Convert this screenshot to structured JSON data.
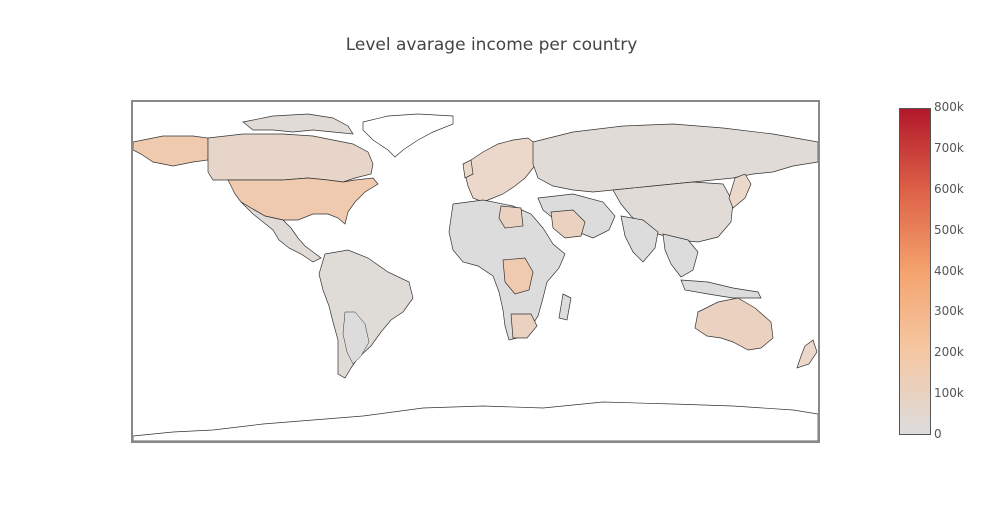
{
  "title": "Level avarage income per country",
  "colorscale": {
    "min": 0,
    "max": 800000,
    "stops": [
      "#dcdcdc",
      "#f5c8a4",
      "#f4a36d",
      "#dd6147",
      "#b2182b"
    ],
    "ticks": [
      "800k",
      "700k",
      "600k",
      "500k",
      "400k",
      "300k",
      "200k",
      "100k",
      "0"
    ]
  },
  "colors": {
    "land_low": "#e0dbd6",
    "land_light_peach": "#ebd8ca",
    "land_peach": "#f0caaf",
    "land_grey": "#dcdcdc",
    "border": "#333333",
    "frame": "#888888"
  }
}
